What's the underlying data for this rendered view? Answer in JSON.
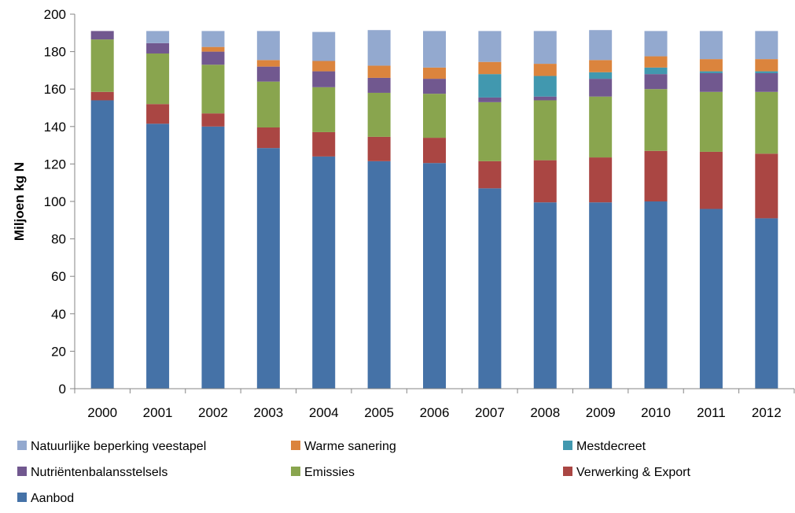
{
  "chart_data": {
    "type": "bar",
    "stacked": true,
    "title": "",
    "xlabel": "",
    "ylabel": "Miljoen kg N",
    "ylim": [
      0,
      200
    ],
    "yticks": [
      0,
      20,
      40,
      60,
      80,
      100,
      120,
      140,
      160,
      180,
      200
    ],
    "grid": false,
    "legend_position": "bottom",
    "categories": [
      "2000",
      "2001",
      "2002",
      "2003",
      "2004",
      "2005",
      "2006",
      "2007",
      "2008",
      "2009",
      "2010",
      "2011",
      "2012"
    ],
    "series": [
      {
        "name": "Aanbod",
        "color": "#4572A7",
        "values": [
          154,
          141.5,
          140,
          128.5,
          124,
          121.5,
          120.5,
          107,
          99.5,
          99.5,
          100,
          96,
          91
        ]
      },
      {
        "name": "Verwerking & Export",
        "color": "#AA4643",
        "values": [
          4.5,
          10.5,
          7,
          11,
          13,
          13,
          13.5,
          14.5,
          22.5,
          24,
          27,
          30.5,
          34.5
        ]
      },
      {
        "name": "Emissies",
        "color": "#89A54E",
        "values": [
          28,
          27,
          26,
          24.5,
          24,
          23.5,
          23.5,
          31.5,
          32,
          32.5,
          33,
          32,
          33
        ]
      },
      {
        "name": "Nutriëntenbalansstelsels",
        "color": "#71588F",
        "values": [
          4.5,
          5.5,
          7,
          8,
          8.5,
          8,
          8,
          2.5,
          2,
          9.5,
          8,
          10,
          10
        ]
      },
      {
        "name": "Mestdecreet",
        "color": "#4198AF",
        "values": [
          0,
          0,
          0,
          0,
          0,
          0,
          0,
          12.5,
          11,
          3.5,
          3.5,
          1,
          1
        ]
      },
      {
        "name": "Warme sanering",
        "color": "#DB843D",
        "values": [
          0,
          0,
          2.5,
          3.5,
          5.5,
          6.5,
          6,
          6.5,
          6.5,
          6.5,
          6,
          6.5,
          6.5
        ]
      },
      {
        "name": "Natuurlijke beperking veestapel",
        "color": "#93A9CF",
        "values": [
          0,
          6.5,
          8.5,
          15.5,
          15.5,
          19,
          19.5,
          16.5,
          17.5,
          16,
          13.5,
          15,
          15
        ]
      }
    ],
    "legend_order": [
      "Natuurlijke beperking veestapel",
      "Warme sanering",
      "Mestdecreet",
      "Nutriëntenbalansstelsels",
      "Emissies",
      "Verwerking & Export",
      "Aanbod"
    ]
  }
}
